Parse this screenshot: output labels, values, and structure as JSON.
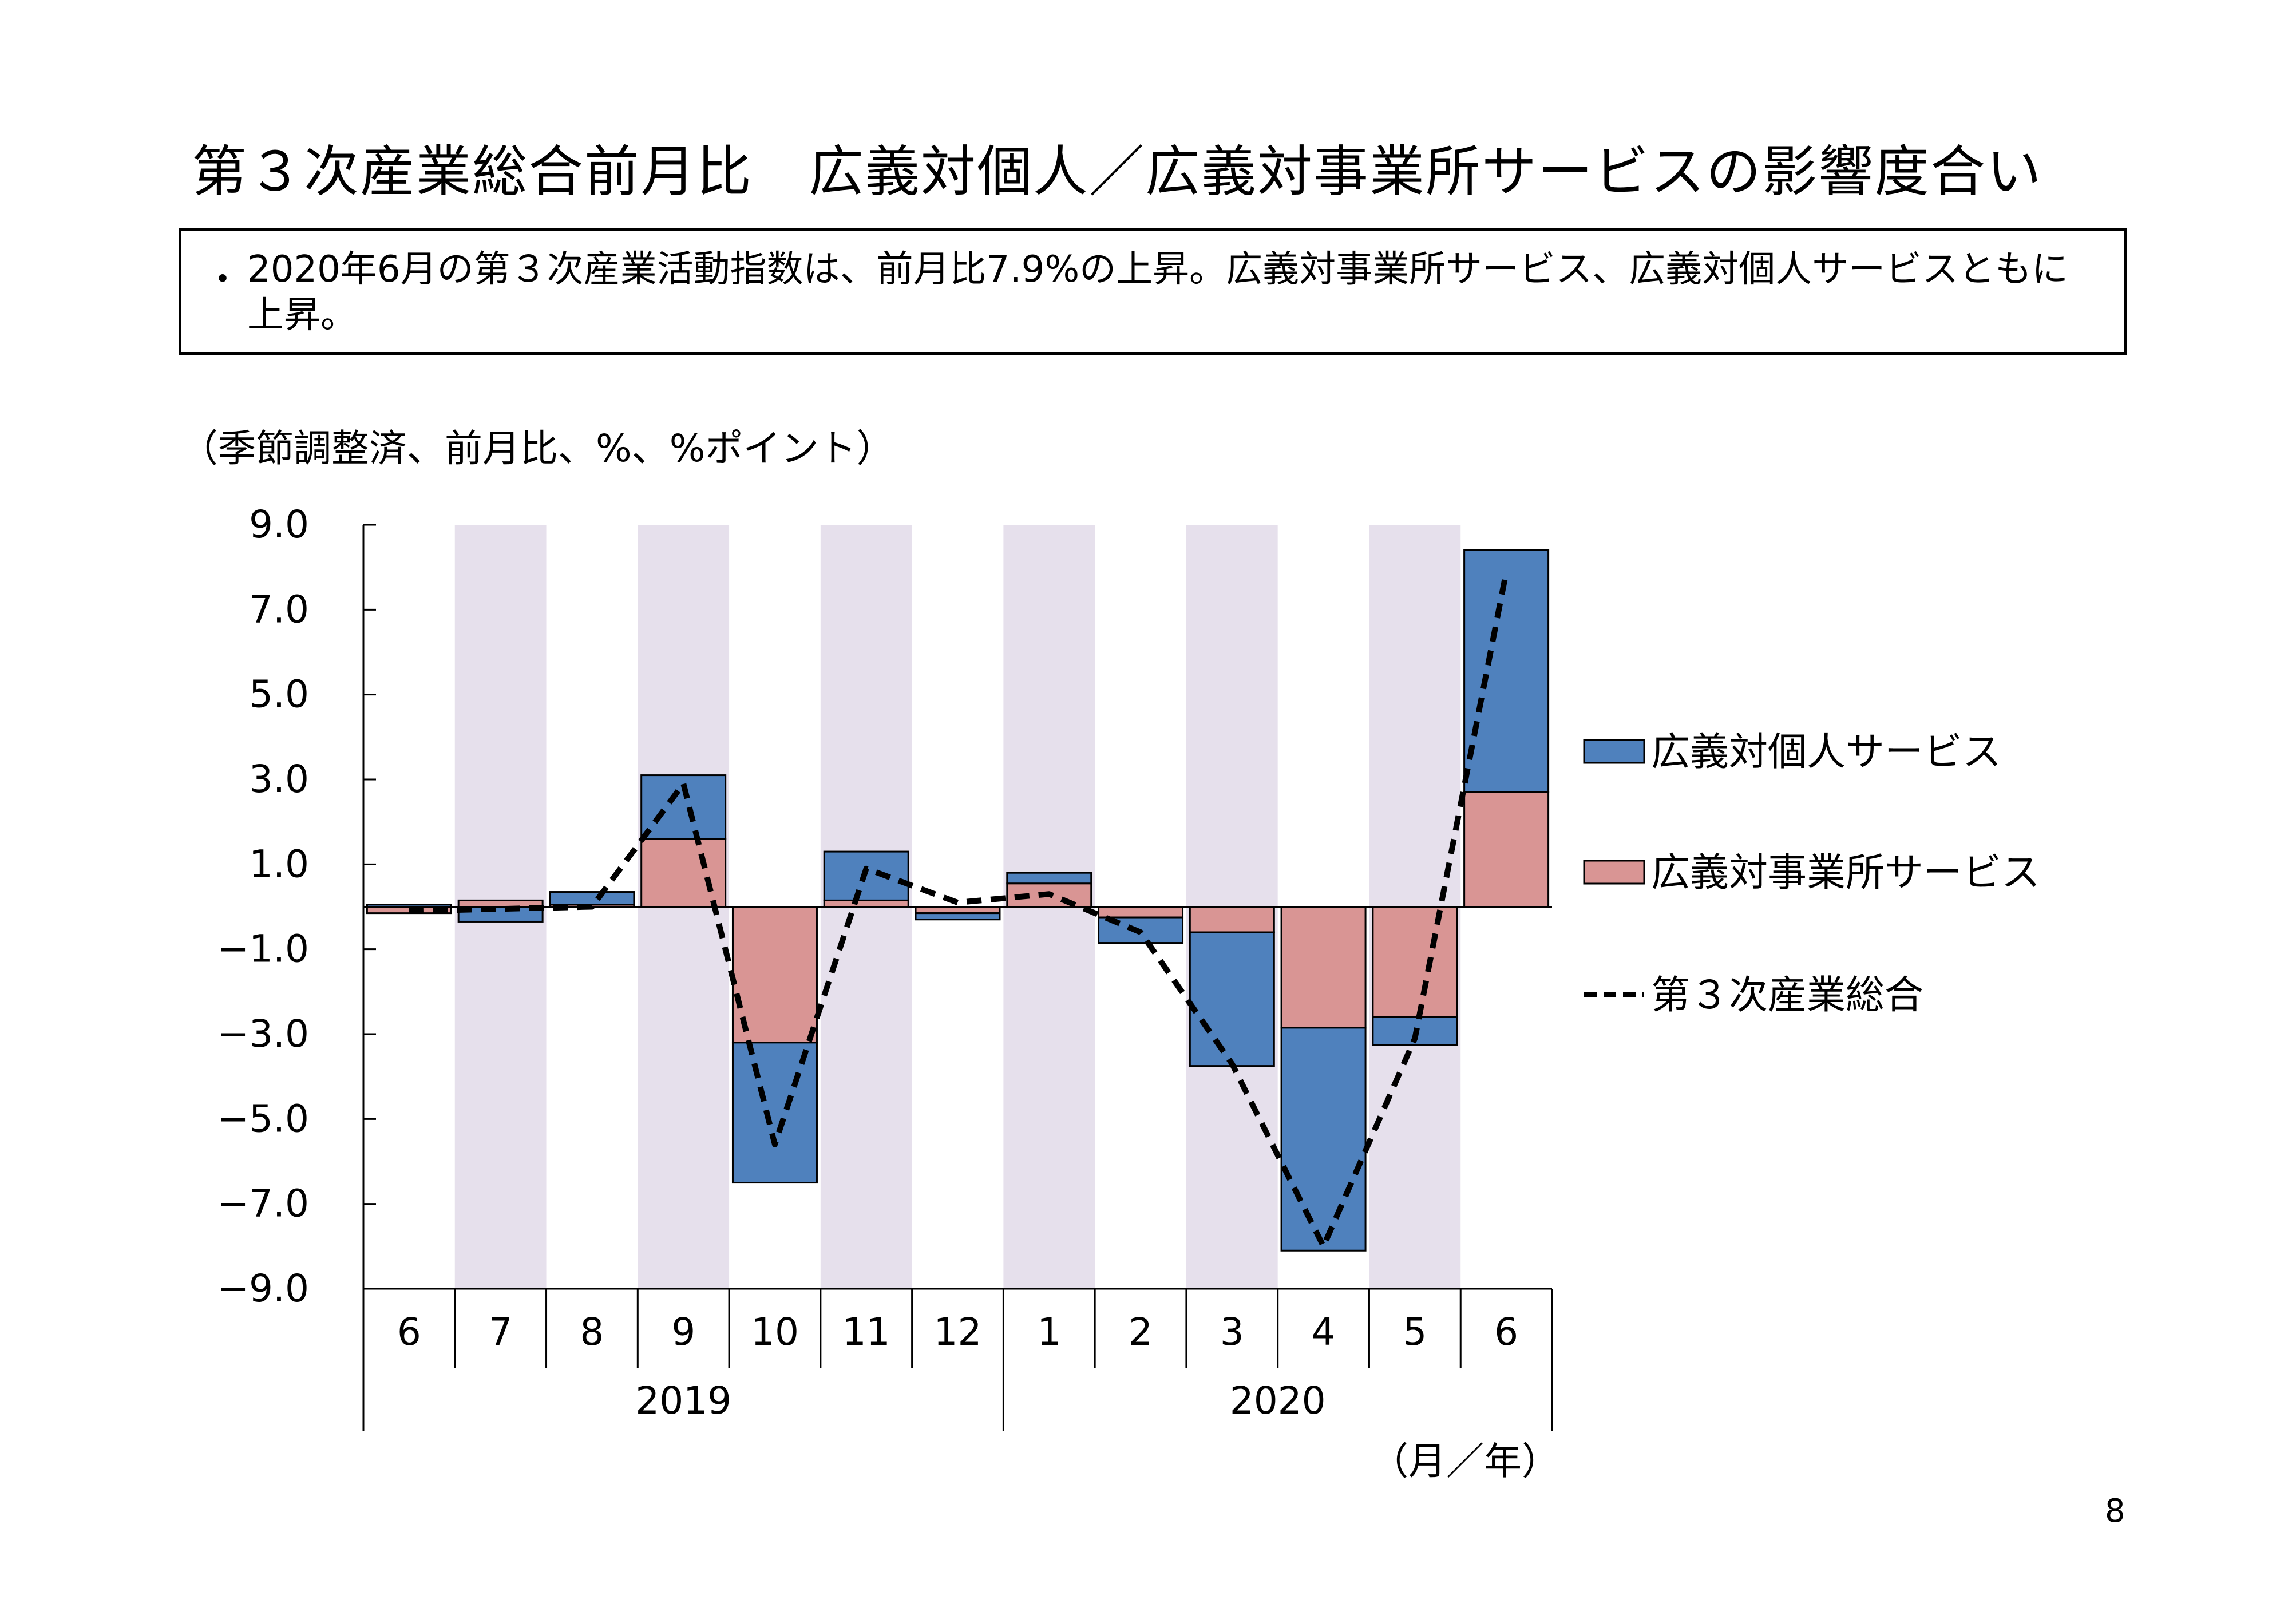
{
  "page": {
    "title": "第３次産業総合前月比　広義対個人／広義対事業所サービスの影響度合い",
    "summary_bullet": "・",
    "summary_text": "2020年6月の第３次産業活動指数は、前月比7.9%の上昇。広義対事業所サービス、広義対個人サービスともに上昇。",
    "unit_note": "（季節調整済、前月比、%、%ポイント）",
    "x_unit": "（月／年）",
    "page_number": "8"
  },
  "chart_data": {
    "type": "bar",
    "stacked": true,
    "categories": [
      "6",
      "7",
      "8",
      "9",
      "10",
      "11",
      "12",
      "1",
      "2",
      "3",
      "4",
      "5",
      "6"
    ],
    "years": [
      {
        "label": "2019",
        "from": 0,
        "to": 6
      },
      {
        "label": "2020",
        "from": 7,
        "to": 12
      }
    ],
    "shaded_categories": [
      1,
      3,
      5,
      7,
      9,
      11
    ],
    "ylim": [
      -9.0,
      9.0
    ],
    "yticks": [
      "9.0",
      "7.0",
      "5.0",
      "3.0",
      "1.0",
      "−1.0",
      "−3.0",
      "−5.0",
      "−7.0",
      "−9.0"
    ],
    "ytick_values": [
      9,
      7,
      5,
      3,
      1,
      -1,
      -3,
      -5,
      -7,
      -9
    ],
    "series": [
      {
        "name": "広義対事業所サービス",
        "kind": "bar",
        "color": "#d99594",
        "values": [
          -0.15,
          0.15,
          0.05,
          1.6,
          -3.2,
          0.15,
          -0.15,
          0.55,
          -0.25,
          -0.6,
          -2.85,
          -2.6,
          2.7
        ]
      },
      {
        "name": "広義対個人サービス",
        "kind": "bar",
        "color": "#4f81bd",
        "values": [
          0.05,
          -0.35,
          0.3,
          1.5,
          -3.3,
          1.15,
          -0.15,
          0.25,
          -0.6,
          -3.15,
          -5.25,
          -0.65,
          5.7
        ]
      },
      {
        "name": "第３次産業総合",
        "kind": "line",
        "style": "dashed",
        "color": "#000000",
        "values": [
          -0.1,
          -0.05,
          0.0,
          2.9,
          -5.6,
          0.9,
          0.1,
          0.3,
          -0.6,
          -3.7,
          -8.0,
          -3.1,
          7.9
        ]
      }
    ],
    "legend": [
      "広義対個人サービス",
      "広義対事業所サービス",
      "第３次産業総合"
    ],
    "legend_position": "right",
    "shade_color": "#e6e0ec"
  }
}
